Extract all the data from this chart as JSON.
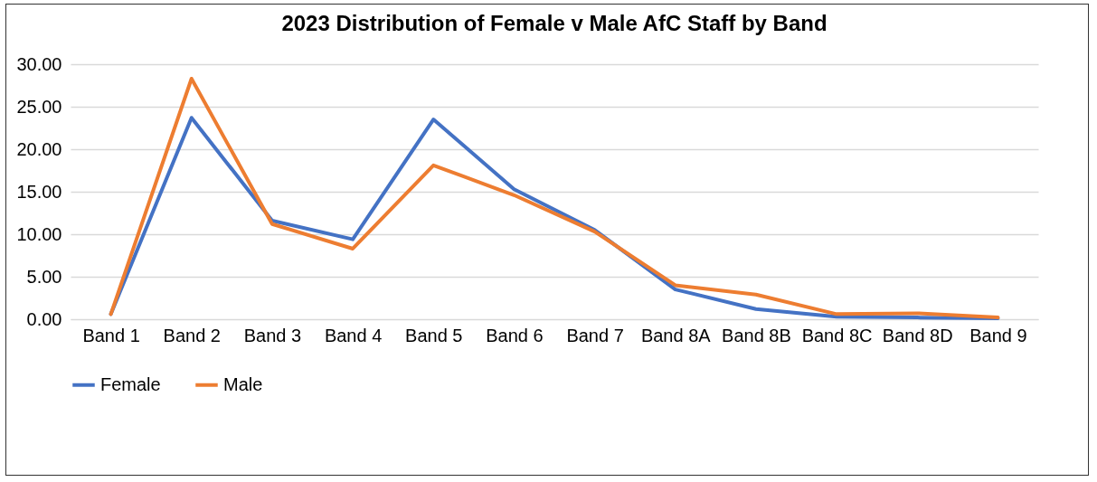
{
  "chart_data": {
    "type": "line",
    "title": "2023 Distribution of Female v Male AfC Staff by Band",
    "categories": [
      "Band 1",
      "Band 2",
      "Band 3",
      "Band 4",
      "Band 5",
      "Band 6",
      "Band 7",
      "Band 8A",
      "Band 8B",
      "Band 8C",
      "Band 8D",
      "Band 9"
    ],
    "series": [
      {
        "name": "Female",
        "color": "#4472c4",
        "values": [
          0.6,
          23.7,
          11.6,
          9.4,
          23.5,
          15.3,
          10.5,
          3.5,
          1.2,
          0.3,
          0.2,
          0.1
        ]
      },
      {
        "name": "Male",
        "color": "#ed7d31",
        "values": [
          0.6,
          28.3,
          11.2,
          8.3,
          18.1,
          14.6,
          10.3,
          4.0,
          2.9,
          0.6,
          0.7,
          0.2
        ]
      }
    ],
    "ylim": [
      0,
      30
    ],
    "yticks": [
      {
        "value": 0,
        "label": "0.00"
      },
      {
        "value": 5,
        "label": "5.00"
      },
      {
        "value": 10,
        "label": "10.00"
      },
      {
        "value": 15,
        "label": "15.00"
      },
      {
        "value": 20,
        "label": "20.00"
      },
      {
        "value": 25,
        "label": "25.00"
      },
      {
        "value": 30,
        "label": "30.00"
      }
    ],
    "grid": "y",
    "legend": "bottom",
    "marker": "none",
    "line_style": "solid"
  }
}
